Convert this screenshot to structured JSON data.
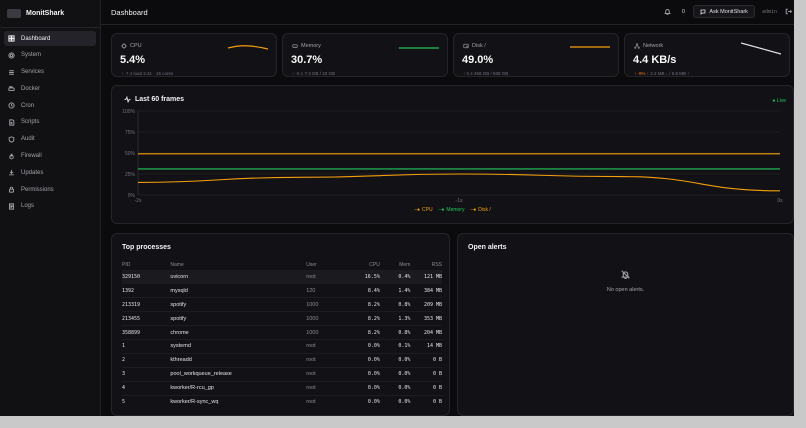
{
  "brand": {
    "name": "MonitShark"
  },
  "sidebar": {
    "items": [
      {
        "label": "Dashboard",
        "icon": "dashboard-icon",
        "active": true
      },
      {
        "label": "System",
        "icon": "gear-icon"
      },
      {
        "label": "Services",
        "icon": "services-icon"
      },
      {
        "label": "Docker",
        "icon": "docker-icon"
      },
      {
        "label": "Cron",
        "icon": "clock-icon"
      },
      {
        "label": "Scripts",
        "icon": "script-icon"
      },
      {
        "label": "Audit",
        "icon": "shield-icon"
      },
      {
        "label": "Firewall",
        "icon": "flame-icon"
      },
      {
        "label": "Updates",
        "icon": "download-icon"
      },
      {
        "label": "Permissions",
        "icon": "lock-icon"
      },
      {
        "label": "Logs",
        "icon": "logs-icon"
      }
    ]
  },
  "header": {
    "title": "Dashboard",
    "notification_count": "0",
    "ask_button": "Ask MonitShark",
    "user": "admin"
  },
  "stats": [
    {
      "label": "CPU",
      "value": "5.4%",
      "delta": "↑ -7.4",
      "sub": "load 2.41 · 16 cores",
      "color": "#f59e0b",
      "delta_up": false,
      "icon": "cpu-icon"
    },
    {
      "label": "Memory",
      "value": "30.7%",
      "delta": "↑ -5.1",
      "sub": "7.3 GB / 23 GB",
      "color": "#22c55e",
      "delta_up": false,
      "icon": "memory-icon"
    },
    {
      "label": "Disk /",
      "value": "49.0%",
      "delta": "↑ 0.4",
      "sub": "458 GB / 938 GB",
      "color": "#f59e0b",
      "delta_up": false,
      "icon": "disk-icon"
    },
    {
      "label": "Network",
      "value": "4.4 KB/s",
      "delta": "↑ -9%",
      "sub": "↑ 2.2 MB ↓ / 6.8 MB ↑",
      "color": "#e4e4e7",
      "delta_up": true,
      "icon": "network-icon"
    }
  ],
  "frames_chart": {
    "title": "Last 60 frames",
    "live_label": "● Live"
  },
  "chart_data": {
    "type": "line",
    "title": "Last 60 frames",
    "x_ticks": [
      "-2s",
      "-1s",
      "0s"
    ],
    "y_ticks": [
      "100%",
      "75%",
      "50%",
      "25%",
      "0%"
    ],
    "ylim": [
      0,
      100
    ],
    "grid": true,
    "legend_position": "bottom-center",
    "series": [
      {
        "name": "CPU",
        "color": "#f59e0b",
        "points": [
          [
            0,
            15
          ],
          [
            0.25,
            21
          ],
          [
            0.5,
            25
          ],
          [
            0.75,
            22
          ],
          [
            1,
            5
          ]
        ]
      },
      {
        "name": "Memory",
        "color": "#22c55e",
        "points": [
          [
            0,
            31
          ],
          [
            0.5,
            31
          ],
          [
            1,
            31
          ]
        ]
      },
      {
        "name": "Disk /",
        "color": "#f59e0b",
        "points": [
          [
            0,
            49
          ],
          [
            0.5,
            49
          ],
          [
            1,
            49
          ]
        ]
      }
    ]
  },
  "processes": {
    "title": "Top processes",
    "columns": [
      "PID",
      "Name",
      "User",
      "CPU",
      "Mem",
      "RSS"
    ],
    "rows": [
      [
        "329150",
        "uvicorn",
        "root",
        "16.5%",
        "0.4%",
        "121 MB"
      ],
      [
        "1392",
        "mysqld",
        "120",
        "8.4%",
        "1.4%",
        "384 MB"
      ],
      [
        "213319",
        "spotify",
        "1000",
        "8.2%",
        "0.8%",
        "209 MB"
      ],
      [
        "213455",
        "spotify",
        "1000",
        "8.2%",
        "1.3%",
        "353 MB"
      ],
      [
        "358899",
        "chrome",
        "1000",
        "8.2%",
        "0.8%",
        "204 MB"
      ],
      [
        "1",
        "systemd",
        "root",
        "0.0%",
        "0.1%",
        "14 MB"
      ],
      [
        "2",
        "kthreadd",
        "root",
        "0.0%",
        "0.0%",
        "0 B"
      ],
      [
        "3",
        "pool_workqueue_release",
        "root",
        "0.0%",
        "0.0%",
        "0 B"
      ],
      [
        "4",
        "kworker/R-rcu_gp",
        "root",
        "0.0%",
        "0.0%",
        "0 B"
      ],
      [
        "5",
        "kworker/R-sync_wq",
        "root",
        "0.0%",
        "0.0%",
        "0 B"
      ]
    ]
  },
  "alerts": {
    "title": "Open alerts",
    "empty_text": "No open alerts."
  }
}
